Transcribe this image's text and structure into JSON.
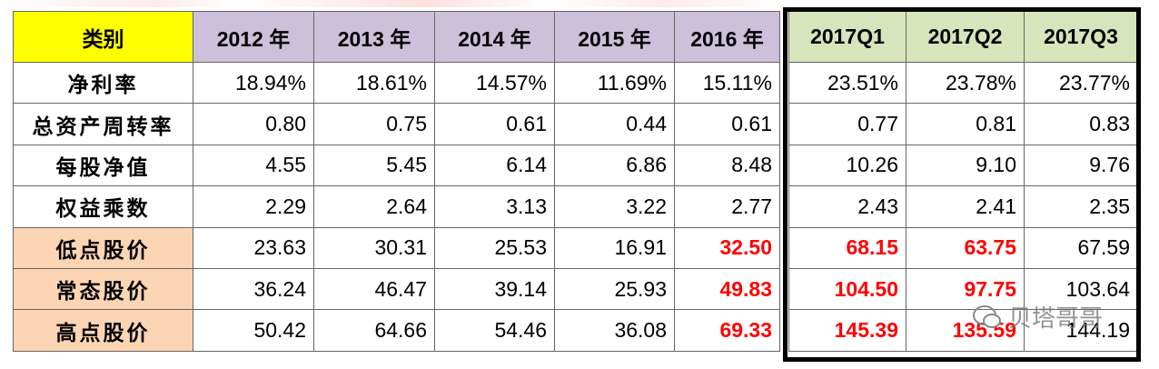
{
  "table": {
    "header": [
      "类别",
      "2012 年",
      "2013 年",
      "2014 年",
      "2015 年",
      "2016 年",
      "2017Q1",
      "2017Q2",
      "2017Q3"
    ],
    "rows": [
      {
        "label": "净利率",
        "cells": [
          "18.94%",
          "18.61%",
          "14.57%",
          "11.69%",
          "15.11%",
          "23.51%",
          "23.78%",
          "23.77%"
        ]
      },
      {
        "label": "总资产周转率",
        "cells": [
          "0.80",
          "0.75",
          "0.61",
          "0.44",
          "0.61",
          "0.77",
          "0.81",
          "0.83"
        ]
      },
      {
        "label": "每股净值",
        "cells": [
          "4.55",
          "5.45",
          "6.14",
          "6.86",
          "8.48",
          "10.26",
          "9.10",
          "9.76"
        ]
      },
      {
        "label": "权益乘数",
        "cells": [
          "2.29",
          "2.64",
          "3.13",
          "3.22",
          "2.77",
          "2.43",
          "2.41",
          "2.35"
        ]
      },
      {
        "label": "低点股价",
        "label_bg": "#fcd5b4",
        "cells": [
          "23.63",
          "30.31",
          "25.53",
          "16.91",
          {
            "text": "32.50",
            "color": "#ff0000"
          },
          {
            "text": "68.15",
            "color": "#ff0000"
          },
          {
            "text": "63.75",
            "color": "#ff0000"
          },
          "67.59"
        ]
      },
      {
        "label": "常态股价",
        "label_bg": "#fcd5b4",
        "cells": [
          "36.24",
          "46.47",
          "39.14",
          "25.93",
          {
            "text": "49.83",
            "color": "#ff0000"
          },
          {
            "text": "104.50",
            "color": "#ff0000"
          },
          {
            "text": "97.75",
            "color": "#ff0000"
          },
          "103.64"
        ]
      },
      {
        "label": "高点股价",
        "label_bg": "#fcd5b4",
        "cells": [
          "50.42",
          "64.66",
          "54.46",
          "36.08",
          {
            "text": "69.33",
            "color": "#ff0000"
          },
          {
            "text": "145.39",
            "color": "#ff0000"
          },
          {
            "text": "135.59",
            "color": "#ff0000"
          },
          "144.19"
        ]
      }
    ],
    "header_colors": [
      "#ffff00",
      "#ccc0da",
      "#ccc0da",
      "#ccc0da",
      "#ccc0da",
      "#ccc0da",
      "#d8e4bc",
      "#d8e4bc",
      "#d8e4bc"
    ]
  },
  "watermark": "贝塔哥哥"
}
